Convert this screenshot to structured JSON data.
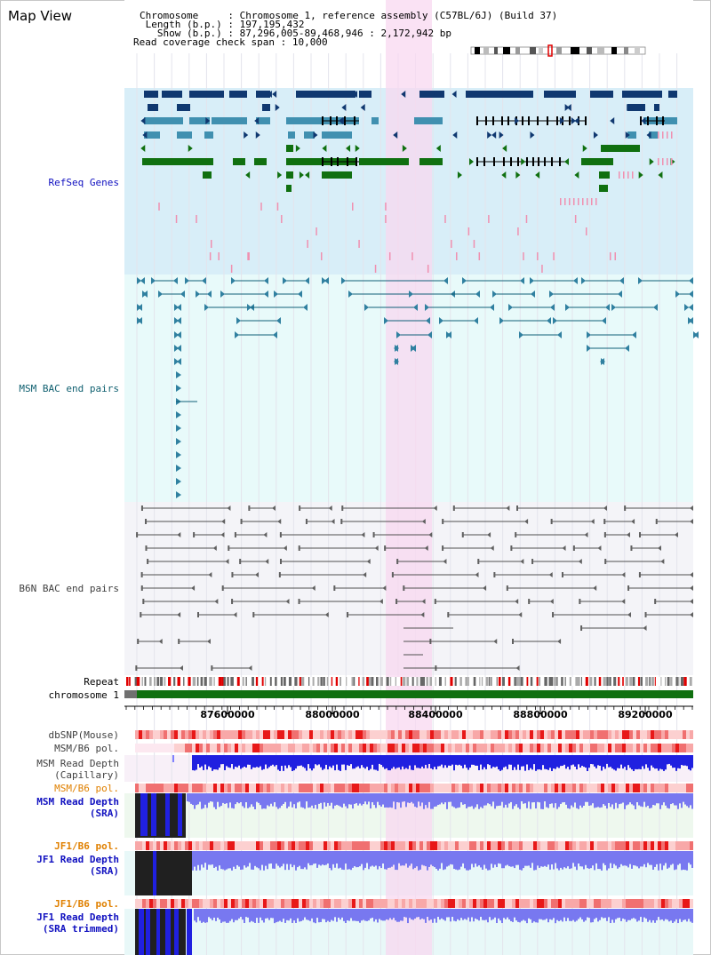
{
  "app": {
    "title": "Map View"
  },
  "header": {
    "lines": [
      {
        "key": "Chromosome     ",
        "sep": ":",
        "value": "Chromosome 1, reference assembly (C57BL/6J) (Build 37)"
      },
      {
        "key": " Length (b.p.) ",
        "sep": ":",
        "value": "197,195,432"
      },
      {
        "key": "   Show (b.p.) ",
        "sep": ":",
        "value": "87,296,005-89,468,946 : 2,172,942 bp"
      },
      {
        "key": "Read coverage check span ",
        "sep": ":",
        "value": "10,000"
      }
    ]
  },
  "tracks": {
    "refseq": {
      "label": "RefSeq Genes",
      "color": "#1010c0"
    },
    "msm_bac": {
      "label": "MSM BAC end pairs",
      "color": "#106070"
    },
    "b6n_bac": {
      "label": "B6N BAC end pairs",
      "color": "#404040"
    },
    "repeat": {
      "label": "Repeat",
      "color": "#000000"
    },
    "chromosome": {
      "label": "chromosome 1",
      "color": "#000000"
    },
    "dbsnp": {
      "label": "dbSNP(Mouse)",
      "color": "#404040"
    },
    "msm_b6_pol_1": {
      "label": "MSM/B6 pol.",
      "color": "#404040"
    },
    "msm_depth_cap": {
      "label": "MSM Read Depth",
      "label2": "(Capillary)",
      "color": "#404040"
    },
    "msm_b6_pol_2": {
      "label": "MSM/B6 pol.",
      "color": "#e08000"
    },
    "msm_depth_sra": {
      "label": "MSM Read Depth",
      "label2": "(SRA)",
      "color": "#1010c0"
    },
    "jf1_b6_pol_1": {
      "label": "JF1/B6 pol.",
      "color": "#e08000"
    },
    "jf1_depth_sra": {
      "label": "JF1 Read Depth",
      "label2": "(SRA)",
      "color": "#1010c0"
    },
    "jf1_b6_pol_2": {
      "label": "JF1/B6 pol.",
      "color": "#e08000"
    },
    "jf1_depth_trim": {
      "label": "JF1 Read Depth",
      "label2": "(SRA trimmed)",
      "color": "#1010c0"
    }
  },
  "axis": {
    "ticks": [
      "87600000",
      "88000000",
      "88400000",
      "88800000",
      "89200000"
    ]
  },
  "colors": {
    "highlight": "#f8d8f0",
    "refseq_bg": "#d8eef8",
    "msm_bg": "#e8fafa",
    "b6n_bg": "#f4f4f8",
    "gene_dark": "#103870",
    "gene_mid": "#4090b0",
    "gene_green": "#107010",
    "bac_teal": "#106078",
    "bac_gray": "#505050",
    "depth_black": "#202020",
    "depth_blue": "#2020e0",
    "depth_light": "#7878f0"
  }
}
